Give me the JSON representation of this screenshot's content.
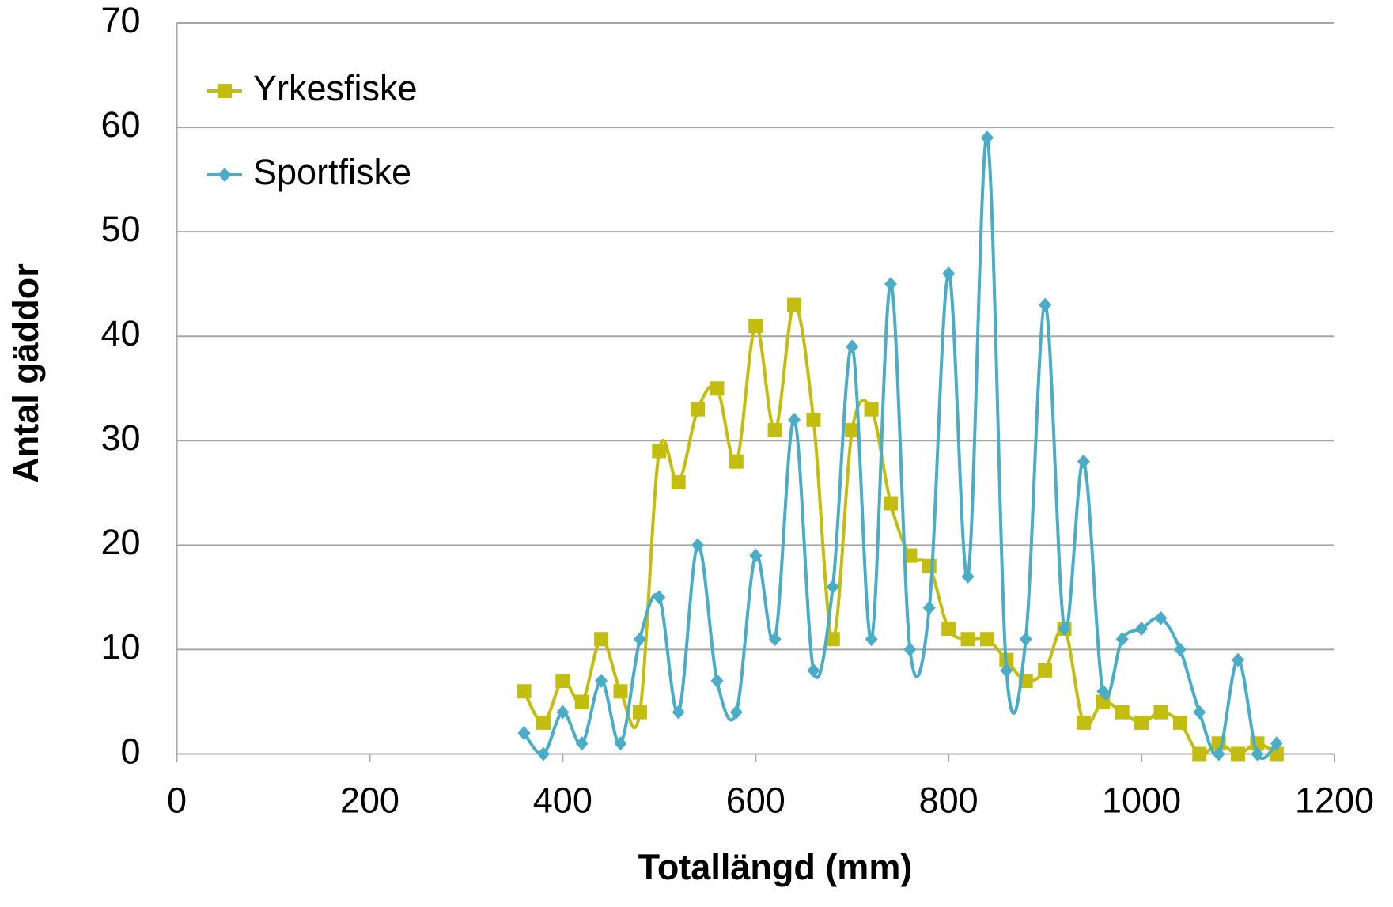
{
  "chart_data": {
    "type": "line",
    "smooth": true,
    "grid": true,
    "legend": "top-left",
    "xlabel": "Totallängd (mm)",
    "ylabel": "Antal gäddor",
    "xlim": [
      0,
      1200
    ],
    "xticks": [
      0,
      200,
      400,
      600,
      800,
      1000,
      1200
    ],
    "ylim": [
      0,
      70
    ],
    "yticks": [
      0,
      10,
      20,
      30,
      40,
      50,
      60,
      70
    ],
    "x": [
      360,
      380,
      400,
      420,
      440,
      460,
      480,
      500,
      520,
      540,
      560,
      580,
      600,
      620,
      640,
      660,
      680,
      700,
      720,
      740,
      760,
      780,
      800,
      820,
      840,
      860,
      880,
      900,
      920,
      940,
      960,
      980,
      1000,
      1020,
      1040,
      1060,
      1080,
      1100,
      1120,
      1140
    ],
    "series": [
      {
        "name": "Yrkesfiske",
        "color": "#c3bd0f",
        "marker": "square",
        "values": [
          6,
          3,
          7,
          5,
          11,
          6,
          4,
          29,
          26,
          33,
          35,
          28,
          41,
          31,
          43,
          32,
          11,
          31,
          33,
          24,
          19,
          18,
          12,
          11,
          11,
          9,
          7,
          8,
          12,
          3,
          5,
          4,
          3,
          4,
          3,
          0,
          1,
          0,
          1,
          0
        ]
      },
      {
        "name": "Sportfiske",
        "color": "#4aacc6",
        "marker": "diamond",
        "values": [
          2,
          0,
          4,
          1,
          7,
          1,
          11,
          15,
          4,
          20,
          7,
          4,
          19,
          11,
          32,
          8,
          16,
          39,
          11,
          45,
          10,
          14,
          46,
          17,
          59,
          8,
          11,
          43,
          12,
          28,
          6,
          11,
          12,
          13,
          10,
          4,
          0,
          9,
          0,
          1
        ]
      }
    ]
  }
}
